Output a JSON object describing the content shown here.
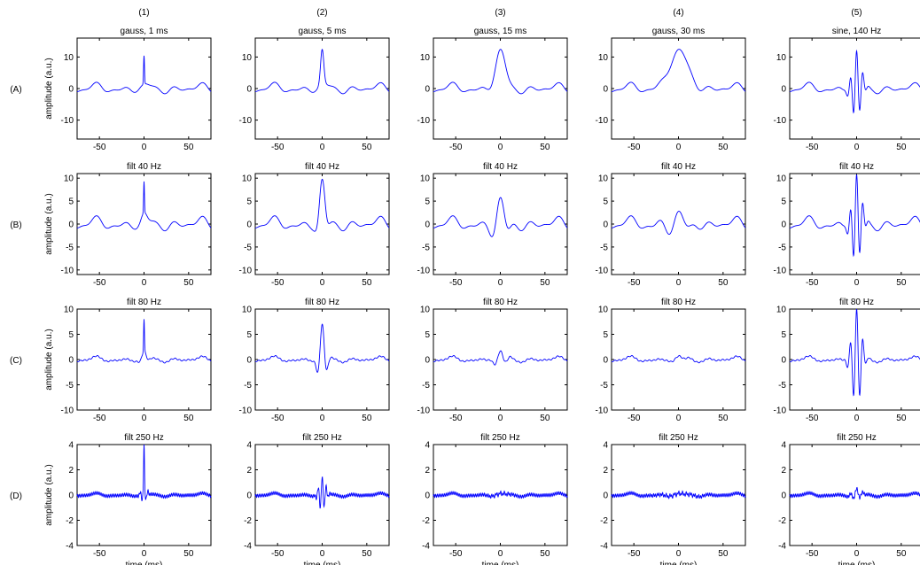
{
  "figure": {
    "columns": [
      "(1)",
      "(2)",
      "(3)",
      "(4)",
      "(5)"
    ],
    "rows": [
      "(A)",
      "(B)",
      "(C)",
      "(D)"
    ],
    "ylabel": "amplitude (a.u.)",
    "xlabel": "time (ms)",
    "titles": [
      [
        "gauss, 1 ms",
        "gauss, 5 ms",
        "gauss, 15 ms",
        "gauss, 30 ms",
        "sine, 140 Hz"
      ],
      [
        "filt 40 Hz",
        "filt 40 Hz",
        "filt 40 Hz",
        "filt 40 Hz",
        "filt 40 Hz"
      ],
      [
        "filt 80 Hz",
        "filt 80 Hz",
        "filt 80 Hz",
        "filt 80 Hz",
        "filt 80 Hz"
      ],
      [
        "filt 250 Hz",
        "filt 250 Hz",
        "filt 250 Hz",
        "filt 250 Hz",
        "filt 250 Hz"
      ]
    ],
    "line_color": "#0000ff"
  },
  "chart_data": {
    "type": "line",
    "layout": "grid 4 rows x 5 columns",
    "xlim": [
      -75,
      75
    ],
    "xticks": [
      -50,
      0,
      50
    ],
    "row_ylims": [
      [
        -16,
        16
      ],
      [
        -11,
        11
      ],
      [
        -10,
        10
      ],
      [
        -4,
        4
      ]
    ],
    "row_yticks": [
      [
        -10,
        0,
        10
      ],
      [
        -10,
        -5,
        0,
        5,
        10
      ],
      [
        -10,
        -5,
        0,
        5,
        10
      ],
      [
        -4,
        -2,
        0,
        2,
        4
      ]
    ],
    "peak_amplitudes": [
      [
        9,
        11,
        11,
        11,
        10.5
      ],
      [
        8,
        8.5,
        4.5,
        1.5,
        9.5
      ],
      [
        7.5,
        6.5,
        1.2,
        0.2,
        9.5
      ],
      [
        4,
        1.3,
        0.1,
        0.1,
        0.4
      ]
    ],
    "grid": false,
    "legend": "none"
  }
}
